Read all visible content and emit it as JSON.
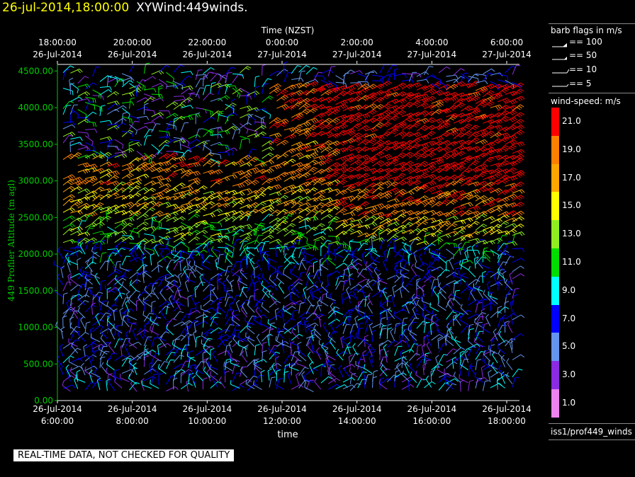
{
  "header": {
    "timestamp": "26-jul-2014,18:00:00",
    "product": "XYWind:449winds."
  },
  "quality_banner": "REAL-TIME DATA, NOT CHECKED FOR QUALITY",
  "legend": {
    "barb_title": "barb flags in m/s",
    "barb_items": [
      "== 100",
      "== 50",
      "== 10",
      "== 5"
    ],
    "speed_title": "wind-speed: m/s",
    "speed_scale": [
      {
        "label": "21.0",
        "color": "#ff0000"
      },
      {
        "label": "19.0",
        "color": "#ff8000"
      },
      {
        "label": "17.0",
        "color": "#ffa500"
      },
      {
        "label": "15.0",
        "color": "#ffff00"
      },
      {
        "label": "13.0",
        "color": "#90ee20"
      },
      {
        "label": "11.0",
        "color": "#00dd00"
      },
      {
        "label": "9.0",
        "color": "#00ffff"
      },
      {
        "label": "7.0",
        "color": "#0000ff"
      },
      {
        "label": "5.0",
        "color": "#6495ed"
      },
      {
        "label": "3.0",
        "color": "#8a2be2"
      },
      {
        "label": "1.0",
        "color": "#ee82ee"
      }
    ],
    "source": "iss1/prof449_winds"
  },
  "chart_data": {
    "type": "scatter",
    "title": "",
    "top_axis_title": "Time (NZST)",
    "top_ticks": [
      [
        "18:00:00",
        "26-Jul-2014"
      ],
      [
        "20:00:00",
        "26-Jul-2014"
      ],
      [
        "22:00:00",
        "26-Jul-2014"
      ],
      [
        "0:00:00",
        "27-Jul-2014"
      ],
      [
        "2:00:00",
        "27-Jul-2014"
      ],
      [
        "4:00:00",
        "27-Jul-2014"
      ],
      [
        "6:00:00",
        "27-Jul-2014"
      ]
    ],
    "bottom_ticks": [
      [
        "26-Jul-2014",
        "6:00:00"
      ],
      [
        "26-Jul-2014",
        "8:00:00"
      ],
      [
        "26-Jul-2014",
        "10:00:00"
      ],
      [
        "26-Jul-2014",
        "12:00:00"
      ],
      [
        "26-Jul-2014",
        "14:00:00"
      ],
      [
        "26-Jul-2014",
        "16:00:00"
      ],
      [
        "26-Jul-2014",
        "18:00:00"
      ]
    ],
    "xlabel": "time",
    "ylabel": "449 Profiler Altitude (m agl)",
    "ylim": [
      0,
      4600
    ],
    "y_ticks": [
      "0.00",
      "500.00",
      "1000.00",
      "1500.00",
      "2000.00",
      "2500.00",
      "3000.00",
      "3500.00",
      "4000.00",
      "4500.00"
    ],
    "x_range_hours_utc": [
      6,
      18
    ],
    "speed_layers": [
      {
        "alt_from": 0,
        "alt_to": 600,
        "speed": 5
      },
      {
        "alt_from": 600,
        "alt_to": 1800,
        "speed": 6
      },
      {
        "alt_from": 1800,
        "alt_to": 2100,
        "speed": 8
      },
      {
        "alt_from": 2100,
        "alt_to": 2500,
        "speed": 12
      },
      {
        "alt_from": 2500,
        "alt_to": 2900,
        "speed": 16
      },
      {
        "alt_from": 2900,
        "alt_to": 3500,
        "speed": 18
      },
      {
        "alt_from": 3500,
        "alt_to": 4300,
        "speed": 20
      }
    ]
  }
}
